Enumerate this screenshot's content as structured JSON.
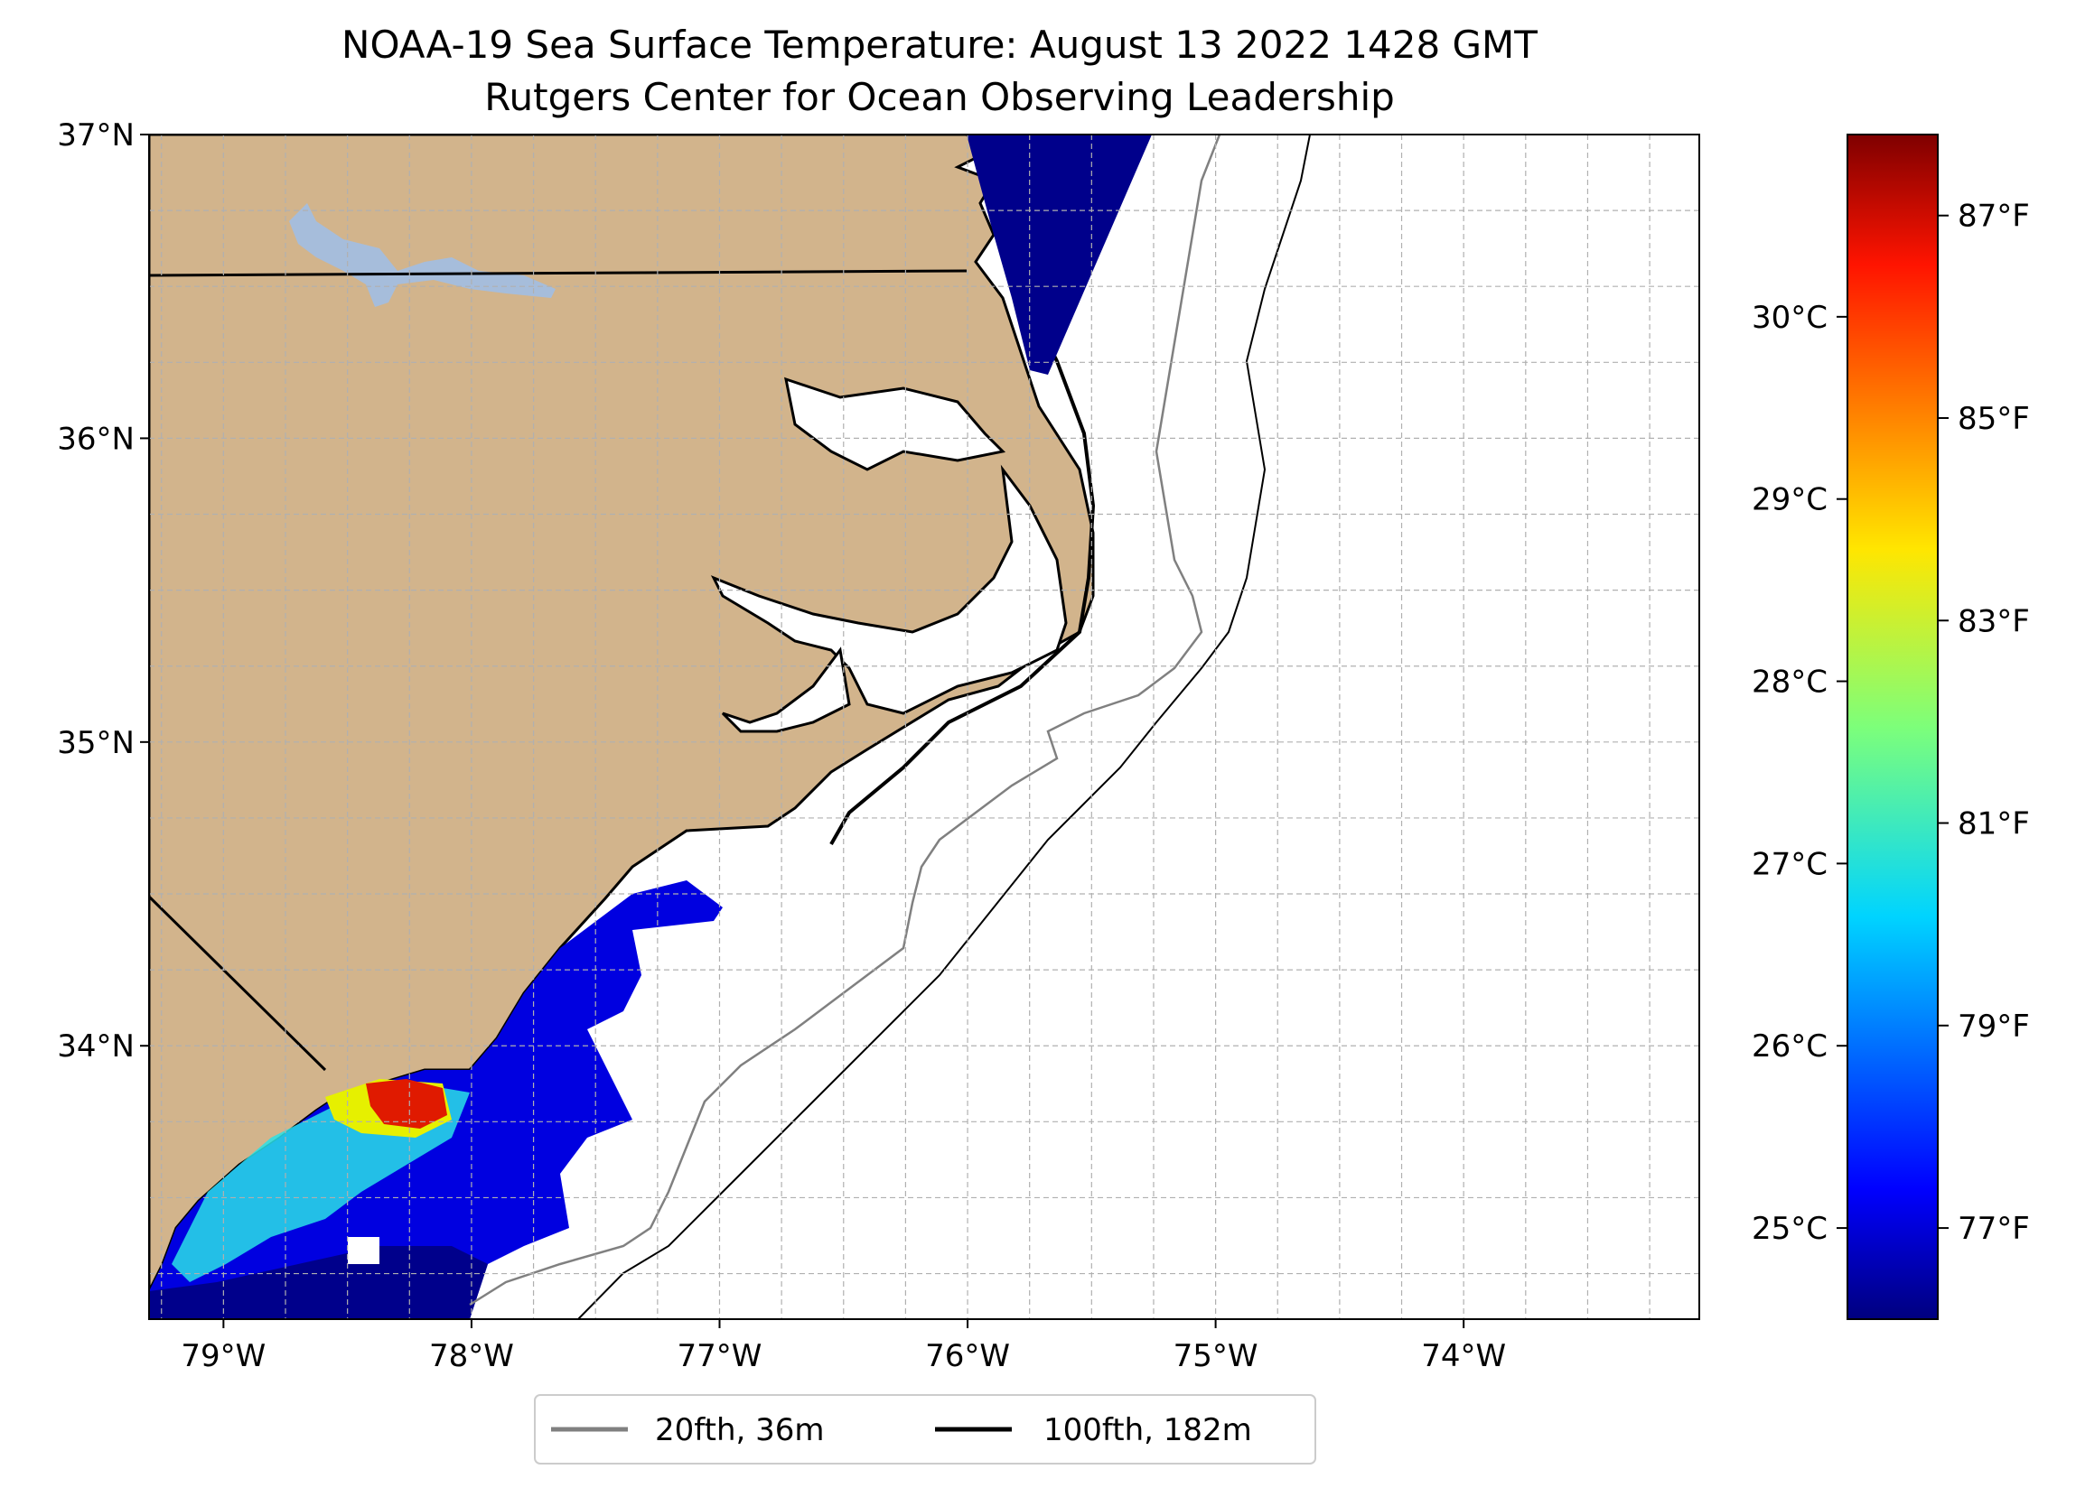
{
  "title_line1": "NOAA-19 Sea Surface Temperature: August 13 2022 1428 GMT",
  "title_line2": "Rutgers Center for Ocean Observing Leadership",
  "lat_labels": [
    {
      "value": 37,
      "label": "37°N"
    },
    {
      "value": 36,
      "label": "36°N"
    },
    {
      "value": 35,
      "label": "35°N"
    },
    {
      "value": 34,
      "label": "34°N"
    }
  ],
  "lon_labels": [
    {
      "value": -79,
      "label": "79°W"
    },
    {
      "value": -78,
      "label": "78°W"
    },
    {
      "value": -77,
      "label": "77°W"
    },
    {
      "value": -76,
      "label": "76°W"
    },
    {
      "value": -75,
      "label": "75°W"
    },
    {
      "value": -74,
      "label": "74°W"
    }
  ],
  "extent": {
    "lon_min": -79.3,
    "lon_max": -73.05,
    "lat_min": 33.1,
    "lat_max": 37.0
  },
  "colorbar": {
    "celsius_ticks": [
      {
        "value": 25,
        "label": "25°C"
      },
      {
        "value": 26,
        "label": "26°C"
      },
      {
        "value": 27,
        "label": "27°C"
      },
      {
        "value": 28,
        "label": "28°C"
      },
      {
        "value": 29,
        "label": "29°C"
      },
      {
        "value": 30,
        "label": "30°C"
      }
    ],
    "fahrenheit_ticks": [
      {
        "value": 77,
        "label": "77°F"
      },
      {
        "value": 79,
        "label": "79°F"
      },
      {
        "value": 81,
        "label": "81°F"
      },
      {
        "value": 83,
        "label": "83°F"
      },
      {
        "value": 85,
        "label": "85°F"
      },
      {
        "value": 87,
        "label": "87°F"
      }
    ],
    "range_c": [
      24.5,
      31.0
    ],
    "colormap": "jet"
  },
  "legend": [
    {
      "label": "20fth, 36m",
      "color": "#808080"
    },
    {
      "label": "100fth, 182m",
      "color": "#000000"
    }
  ],
  "colors": {
    "land": "#d2b48c",
    "lake": "#a6bddb",
    "grid": "#b0b0b0",
    "cold": "#00008b"
  }
}
